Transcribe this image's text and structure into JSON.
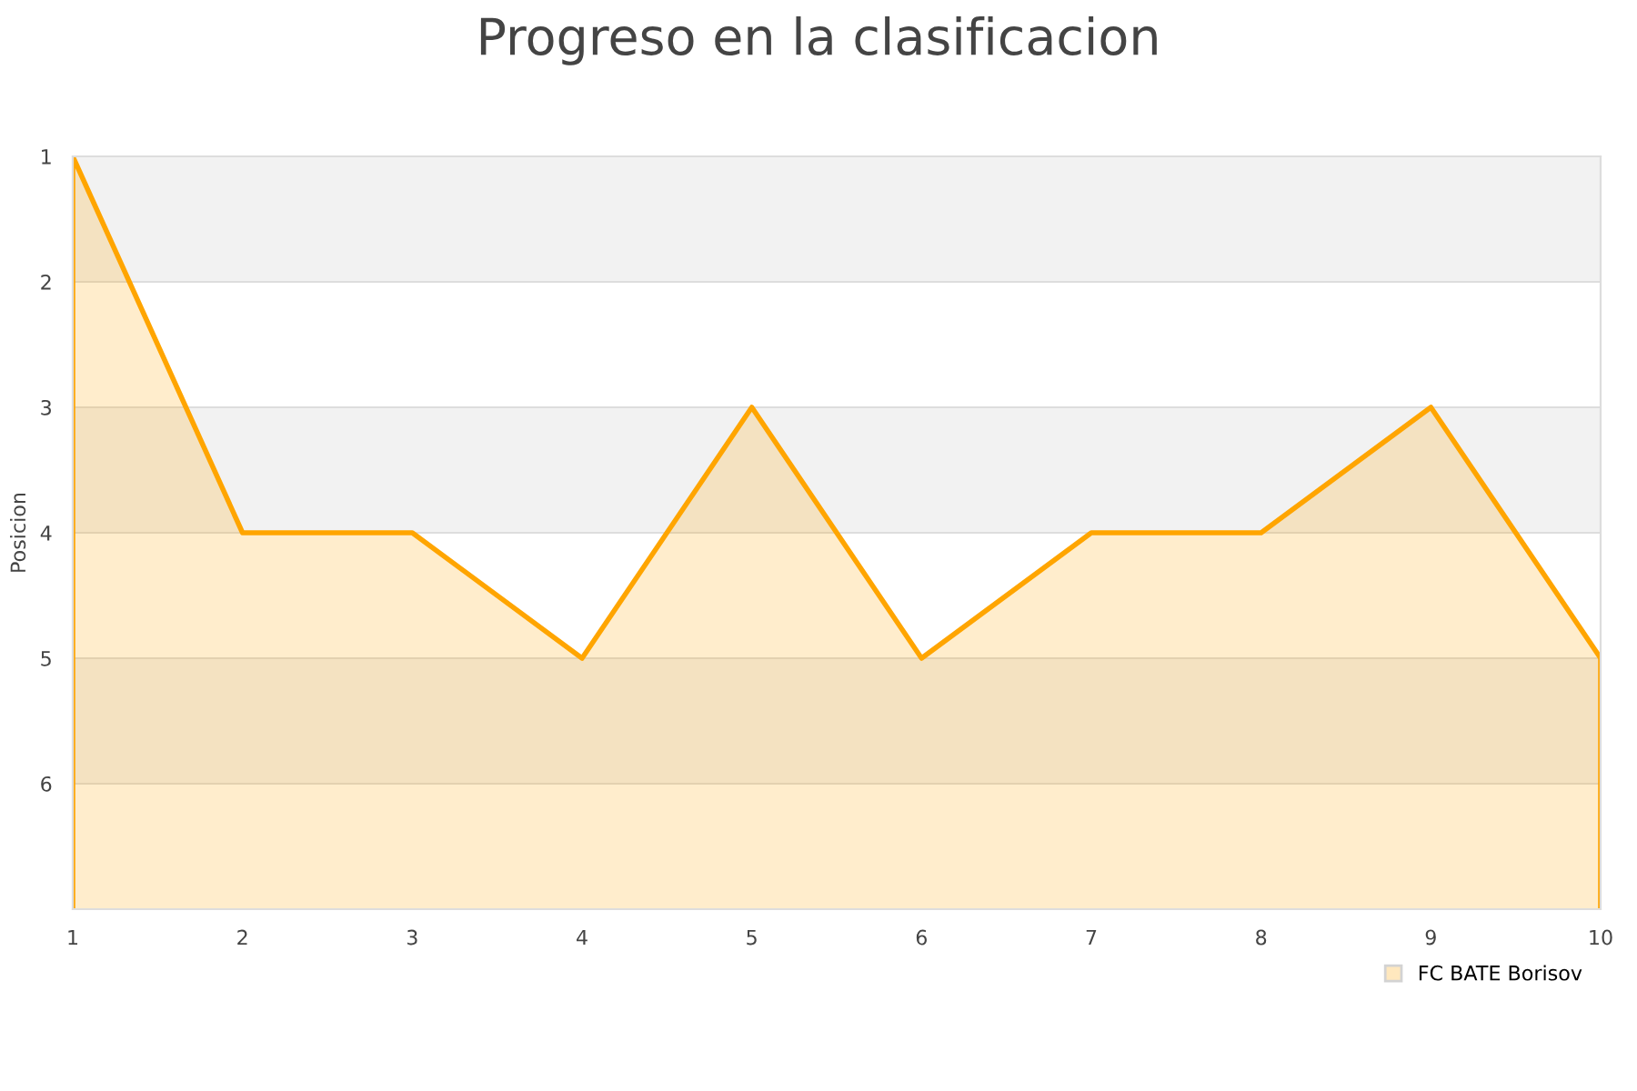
{
  "chart_data": {
    "type": "area",
    "title": "Progreso en la clasificacion",
    "ylabel": "Posicion",
    "x": [
      1,
      2,
      3,
      4,
      5,
      6,
      7,
      8,
      9,
      10
    ],
    "series": [
      {
        "name": "FC BATE Borisov",
        "color": "#ffa500",
        "values": [
          1,
          4,
          4,
          5,
          3,
          5,
          4,
          4,
          3,
          5
        ]
      }
    ],
    "xlim": [
      1,
      10
    ],
    "xticks": [
      1,
      2,
      3,
      4,
      5,
      6,
      7,
      8,
      9,
      10
    ],
    "ylim": [
      7,
      1
    ],
    "yticks": [
      1,
      2,
      3,
      4,
      5,
      6
    ],
    "bands": [
      {
        "axis": "y",
        "from": 1,
        "to": 2,
        "color": "#f2f2f2"
      },
      {
        "axis": "y",
        "from": 3,
        "to": 4,
        "color": "#f2f2f2"
      },
      {
        "axis": "y",
        "from": 5,
        "to": 6,
        "color": "#f2f2f2"
      }
    ],
    "grid": "y",
    "legend": "bottom right",
    "marker": "none",
    "line_style": "solid"
  }
}
